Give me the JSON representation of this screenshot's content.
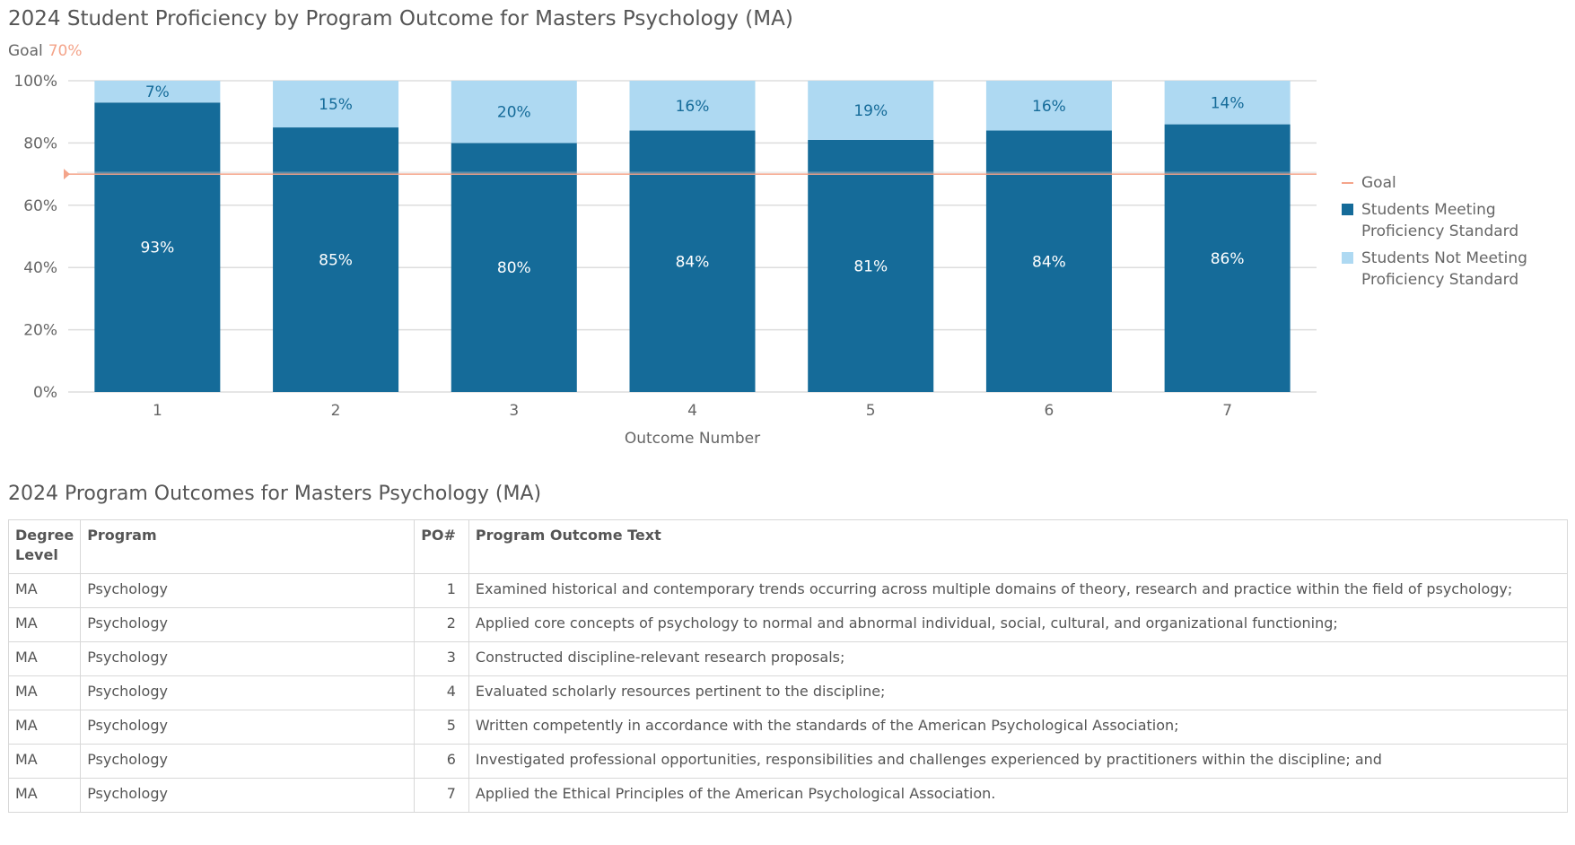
{
  "chart_data": {
    "type": "bar",
    "stacked": true,
    "title": "2024 Student Proficiency by Program Outcome for Masters Psychology (MA)",
    "goal_label": "Goal",
    "goal_value": "70%",
    "goal": 70,
    "xlabel": "Outcome Number",
    "ylabel": "",
    "ylim": [
      0,
      100
    ],
    "yticks": [
      "0%",
      "20%",
      "40%",
      "60%",
      "80%",
      "100%"
    ],
    "categories": [
      "1",
      "2",
      "3",
      "4",
      "5",
      "6",
      "7"
    ],
    "series": [
      {
        "name": "Students Meeting Proficiency Standard",
        "values": [
          93,
          85,
          80,
          84,
          81,
          84,
          86
        ],
        "labels": [
          "93%",
          "85%",
          "80%",
          "84%",
          "81%",
          "84%",
          "86%"
        ],
        "color": "#156b99"
      },
      {
        "name": "Students Not Meeting Proficiency Standard",
        "values": [
          7,
          15,
          20,
          16,
          19,
          16,
          14
        ],
        "labels": [
          "7%",
          "15%",
          "20%",
          "16%",
          "19%",
          "16%",
          "14%"
        ],
        "color": "#aed9f2"
      }
    ],
    "goal_color": "#f4a48a",
    "grid": true,
    "legend": {
      "position": "right",
      "items": [
        "Goal",
        "Students Meeting Proficiency Standard",
        "Students Not Meeting Proficiency Standard"
      ]
    }
  },
  "table": {
    "title": "2024 Program Outcomes for Masters Psychology (MA)",
    "headers": [
      "Degree Level",
      "Program",
      "PO#",
      "Program Outcome Text"
    ],
    "rows": [
      [
        "MA",
        "Psychology",
        "1",
        "Examined historical and contemporary trends occurring across multiple domains of theory, research and practice within the field of psychology;"
      ],
      [
        "MA",
        "Psychology",
        "2",
        "Applied core concepts of psychology to normal and abnormal individual, social, cultural, and organizational functioning;"
      ],
      [
        "MA",
        "Psychology",
        "3",
        "Constructed discipline-relevant research proposals;"
      ],
      [
        "MA",
        "Psychology",
        "4",
        "Evaluated scholarly resources pertinent to the discipline;"
      ],
      [
        "MA",
        "Psychology",
        "5",
        "Written competently in accordance with the standards of the American Psychological Association;"
      ],
      [
        "MA",
        "Psychology",
        "6",
        "Investigated professional opportunities, responsibilities and challenges experienced by practitioners within the discipline; and"
      ],
      [
        "MA",
        "Psychology",
        "7",
        "Applied the Ethical Principles of the American Psychological Association."
      ]
    ]
  }
}
